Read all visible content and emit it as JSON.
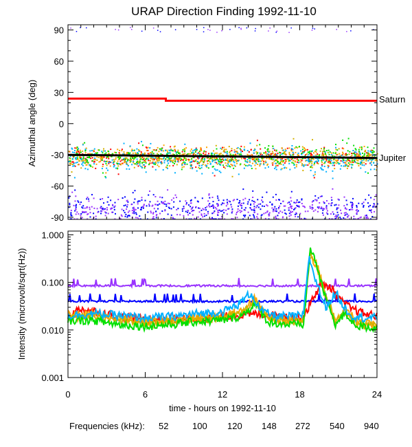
{
  "title": "URAP Direction Finding  1992-11-10",
  "chart_data": [
    {
      "type": "scatter",
      "panel": "top",
      "ylabel": "Azimuthal angle (deg)",
      "ylim": [
        -92,
        95
      ],
      "xlim": [
        0,
        24
      ],
      "yticks": [
        90,
        60,
        30,
        0,
        -30,
        -60,
        -90
      ],
      "ytick_labels": [
        "90",
        "60",
        "30",
        "0",
        "-30",
        "-60",
        "-90"
      ],
      "annotations": [
        {
          "text": "Saturn",
          "x": 24,
          "y": 22
        },
        {
          "text": "Jupiter",
          "x": 24,
          "y": -33
        }
      ],
      "reference_lines": [
        {
          "name": "Saturn",
          "color": "#ff0000",
          "points": [
            [
              0,
              24
            ],
            [
              7.6,
              24
            ],
            [
              7.6,
              22
            ],
            [
              24,
              22
            ]
          ]
        },
        {
          "name": "Jupiter",
          "color": "#000000",
          "points": [
            [
              0,
              -30
            ],
            [
              24,
              -33
            ]
          ]
        }
      ],
      "clusters": [
        {
          "freq_khz": "52",
          "color": "#ff0000",
          "center": -32,
          "spread": 5
        },
        {
          "freq_khz": "100",
          "color": "#ffa500",
          "center": -32,
          "spread": 6
        },
        {
          "freq_khz": "120",
          "color": "#d4b000",
          "center": -32,
          "spread": 6
        },
        {
          "freq_khz": "148",
          "color": "#00e000",
          "center": -31,
          "spread": 6
        },
        {
          "freq_khz": "272",
          "color": "#00b0ff",
          "center": -34,
          "spread": 8
        },
        {
          "freq_khz": "540",
          "color": "#0000ff",
          "center": -80,
          "spread": 8
        },
        {
          "freq_khz": "940",
          "color": "#9933ff",
          "center": -82,
          "spread": 8
        }
      ]
    },
    {
      "type": "line",
      "panel": "bottom",
      "yscale": "log",
      "ylabel": "Intensity (microvolt/sqrt(Hz))",
      "ylim": [
        0.001,
        1.2
      ],
      "xlim": [
        0,
        24
      ],
      "xlabel": "time - hours on 1992-11-10",
      "yticks": [
        1.0,
        0.1,
        0.01,
        0.001
      ],
      "ytick_labels": [
        "1.000",
        "0.100",
        "0.010",
        "0.001"
      ],
      "xticks": [
        0,
        6,
        12,
        18,
        24
      ],
      "xtick_labels": [
        "0",
        "6",
        "12",
        "18",
        "24"
      ],
      "series": [
        {
          "name": "940",
          "color": "#9933ff",
          "x": [
            0,
            24
          ],
          "y": [
            0.085,
            0.085
          ]
        },
        {
          "name": "540",
          "color": "#0000ff",
          "x": [
            0,
            24
          ],
          "y": [
            0.04,
            0.04
          ]
        },
        {
          "name": "52",
          "color": "#ff0000",
          "x": [
            0,
            1,
            2,
            3,
            5,
            7,
            9,
            11,
            13,
            15,
            16,
            17,
            17.8,
            18.3,
            18.8,
            19.6,
            20.4,
            21.2,
            22,
            23,
            24
          ],
          "y": [
            0.02,
            0.028,
            0.025,
            0.022,
            0.018,
            0.016,
            0.017,
            0.018,
            0.02,
            0.022,
            0.02,
            0.019,
            0.018,
            0.019,
            0.035,
            0.09,
            0.08,
            0.04,
            0.028,
            0.022,
            0.02
          ]
        },
        {
          "name": "100",
          "color": "#ffa500",
          "x": [
            0,
            2,
            4,
            6,
            8,
            10,
            12,
            13.5,
            14.5,
            15.5,
            17,
            18.3,
            18.8,
            19.4,
            20,
            20.8,
            21.5,
            22.5,
            24
          ],
          "y": [
            0.02,
            0.022,
            0.017,
            0.015,
            0.016,
            0.018,
            0.02,
            0.025,
            0.045,
            0.018,
            0.016,
            0.016,
            0.4,
            0.2,
            0.05,
            0.015,
            0.03,
            0.014,
            0.013
          ]
        },
        {
          "name": "120",
          "color": "#d4b000",
          "x": [
            0,
            2,
            4,
            6,
            8,
            10,
            12,
            13.5,
            14.5,
            15.5,
            17,
            18.3,
            18.8,
            19.3,
            20,
            20.8,
            21.5,
            22.5,
            24
          ],
          "y": [
            0.018,
            0.02,
            0.016,
            0.014,
            0.015,
            0.017,
            0.018,
            0.022,
            0.04,
            0.017,
            0.015,
            0.015,
            0.45,
            0.25,
            0.06,
            0.014,
            0.025,
            0.013,
            0.012
          ]
        },
        {
          "name": "148",
          "color": "#00e000",
          "x": [
            0,
            2,
            4,
            6,
            8,
            10,
            12,
            13.5,
            14.5,
            15.5,
            17,
            18.3,
            18.8,
            19.2,
            19.8,
            20.8,
            21.5,
            22.5,
            24
          ],
          "y": [
            0.016,
            0.016,
            0.013,
            0.012,
            0.013,
            0.015,
            0.016,
            0.02,
            0.035,
            0.015,
            0.013,
            0.013,
            0.5,
            0.3,
            0.07,
            0.013,
            0.022,
            0.012,
            0.011
          ]
        },
        {
          "name": "272",
          "color": "#00b0ff",
          "x": [
            0,
            2,
            4,
            6,
            8,
            10,
            12,
            13.3,
            14.2,
            15,
            16,
            17,
            18.3,
            18.7,
            19.3,
            20,
            20.8,
            21.3,
            22,
            23,
            24
          ],
          "y": [
            0.02,
            0.022,
            0.02,
            0.018,
            0.019,
            0.022,
            0.024,
            0.035,
            0.06,
            0.025,
            0.02,
            0.019,
            0.02,
            0.35,
            0.1,
            0.03,
            0.06,
            0.035,
            0.02,
            0.018,
            0.018
          ]
        }
      ]
    }
  ],
  "legend": {
    "label": "Frequencies (kHz):",
    "items": [
      {
        "text": "52",
        "color": "#ff0000"
      },
      {
        "text": "100",
        "color": "#ffa500"
      },
      {
        "text": "120",
        "color": "#d4b000"
      },
      {
        "text": "148",
        "color": "#00e000"
      },
      {
        "text": "272",
        "color": "#00b0ff"
      },
      {
        "text": "540",
        "color": "#0000ff"
      },
      {
        "text": "940",
        "color": "#9933ff"
      }
    ]
  }
}
